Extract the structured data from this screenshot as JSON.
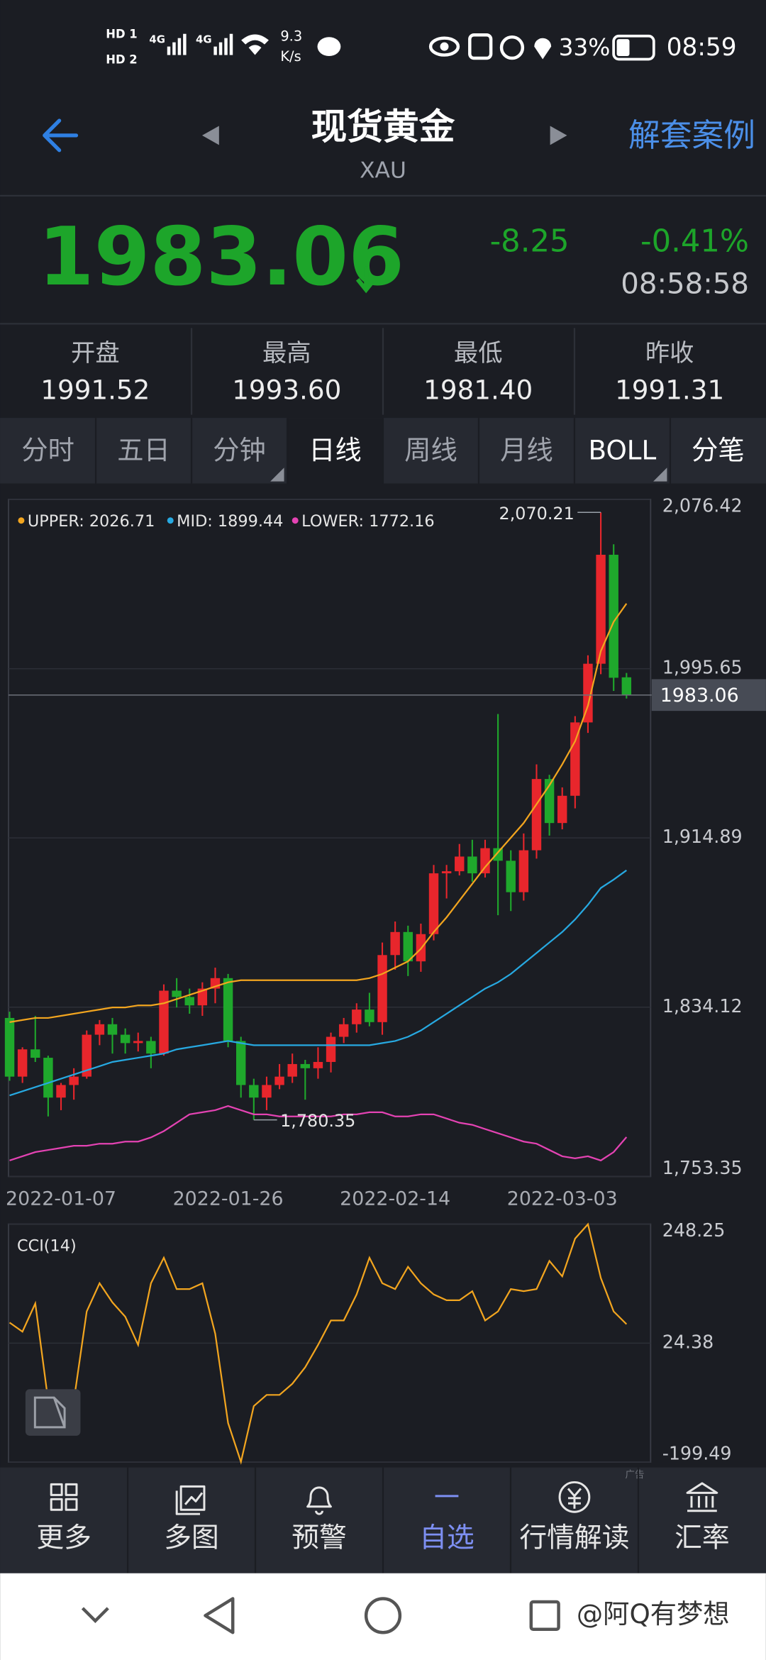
{
  "status_bar": {
    "sim": [
      "HD 1",
      "HD 2"
    ],
    "network": [
      "4G",
      "4G"
    ],
    "speed": "9.3",
    "speed_unit": "K/s",
    "battery": "33%",
    "time": "08:59"
  },
  "header": {
    "title": "现货黄金",
    "subtitle": "XAU",
    "action": "解套案例"
  },
  "quote": {
    "price": "1983.06",
    "change": "-8.25",
    "change_pct": "-0.41%",
    "time": "08:58:58"
  },
  "stats": [
    {
      "label": "开盘",
      "value": "1991.52"
    },
    {
      "label": "最高",
      "value": "1993.60"
    },
    {
      "label": "最低",
      "value": "1981.40"
    },
    {
      "label": "昨收",
      "value": "1991.31"
    }
  ],
  "tabs": [
    "分时",
    "五日",
    "分钟",
    "日线",
    "周线",
    "月线",
    "BOLL",
    "分笔"
  ],
  "chart_data": [
    {
      "type": "candlestick",
      "categories": [
        null,
        null,
        null,
        null,
        "2022-01-07",
        null,
        null,
        null,
        null,
        null,
        null,
        null,
        null,
        null,
        null,
        null,
        null,
        "2022-01-26",
        null,
        null,
        null,
        null,
        null,
        null,
        null,
        null,
        null,
        null,
        null,
        null,
        "2022-02-14",
        null,
        null,
        null,
        null,
        null,
        null,
        null,
        null,
        null,
        null,
        null,
        null,
        "2022-03-03",
        null,
        null,
        null,
        null,
        null
      ],
      "open": [
        1829,
        1801,
        1814,
        1810,
        1791,
        1797,
        1801,
        1821,
        1826,
        1821,
        1817,
        1818,
        1812,
        1842,
        1839,
        1835,
        1843,
        1848,
        1818,
        1797,
        1791,
        1797,
        1801,
        1807,
        1805,
        1808,
        1820,
        1826,
        1833,
        1827,
        1859,
        1870,
        1856,
        1869,
        1898,
        1899,
        1906,
        1898,
        1910,
        1904,
        1889,
        1909,
        1943,
        1922,
        1935,
        1970,
        1998,
        2050,
        1991.52
      ],
      "high": [
        1832,
        1815,
        1830,
        1811,
        1798,
        1805,
        1823,
        1828,
        1829,
        1824,
        1822,
        1820,
        1845,
        1848,
        1843,
        1846,
        1853,
        1850,
        1820,
        1800,
        1801,
        1807,
        1812,
        1809,
        1815,
        1822,
        1829,
        1836,
        1841,
        1865,
        1875,
        1873,
        1874,
        1902,
        1902,
        1912,
        1914,
        1914,
        1974,
        1909,
        1917,
        1950,
        1945,
        1939,
        1973,
        2002,
        2070.21,
        2055,
        1993.6
      ],
      "low": [
        1799,
        1798,
        1808,
        1782,
        1785,
        1790,
        1800,
        1816,
        1812,
        1812,
        1813,
        1805,
        1811,
        1834,
        1831,
        1830,
        1836,
        1815,
        1791,
        1780.35,
        1785,
        1795,
        1798,
        1790,
        1800,
        1803,
        1817,
        1822,
        1825,
        1821,
        1852,
        1849,
        1851,
        1866,
        1886,
        1897,
        1894,
        1896,
        1878,
        1880,
        1885,
        1905,
        1916,
        1919,
        1929,
        1965,
        1993,
        1985,
        1981.4
      ],
      "close": [
        1801,
        1814,
        1810,
        1791,
        1797,
        1801,
        1821,
        1826,
        1821,
        1817,
        1818,
        1812,
        1842,
        1839,
        1835,
        1843,
        1848,
        1818,
        1797,
        1791,
        1797,
        1801,
        1807,
        1805,
        1808,
        1820,
        1826,
        1833,
        1827,
        1859,
        1870,
        1856,
        1869,
        1898,
        1899,
        1906,
        1898,
        1910,
        1904,
        1889,
        1909,
        1943,
        1922,
        1935,
        1970,
        1998,
        2050,
        1991.31,
        1983.06
      ],
      "up_color": "#e8262c",
      "down_color": "#1fa82c",
      "series": [
        {
          "name": "UPPER: 2026.71",
          "color": "#f2a51f",
          "values": [
            1827,
            1828,
            1829,
            1829,
            1830,
            1831,
            1832,
            1833,
            1834,
            1834,
            1835,
            1835,
            1836,
            1838,
            1840,
            1842,
            1844,
            1846,
            1847,
            1847,
            1847,
            1847,
            1847,
            1847,
            1847,
            1847,
            1847,
            1847,
            1848,
            1850,
            1853,
            1856,
            1862,
            1870,
            1877,
            1885,
            1893,
            1901,
            1908,
            1915,
            1922,
            1931,
            1940,
            1950,
            1961,
            1978,
            2004,
            2018,
            2026.71
          ]
        },
        {
          "name": "MID: 1899.44",
          "color": "#27a9e1",
          "values": [
            1792,
            1794,
            1796,
            1798,
            1800,
            1802,
            1804,
            1806,
            1808,
            1809,
            1810,
            1811,
            1812,
            1814,
            1815,
            1816,
            1817,
            1818,
            1817,
            1816,
            1816,
            1816,
            1816,
            1816,
            1816,
            1816,
            1816,
            1816,
            1816,
            1817,
            1818,
            1820,
            1823,
            1827,
            1831,
            1835,
            1839,
            1843,
            1846,
            1850,
            1855,
            1860,
            1865,
            1870,
            1876,
            1883,
            1891,
            1895,
            1899.44
          ]
        },
        {
          "name": "LOWER: 1772.16",
          "color": "#e443b3",
          "values": [
            1761,
            1763,
            1765,
            1766,
            1767,
            1768,
            1768,
            1769,
            1769,
            1770,
            1770,
            1772,
            1775,
            1779,
            1783,
            1784,
            1785,
            1787,
            1785,
            1783,
            1783,
            1782,
            1782,
            1782,
            1782,
            1782,
            1783,
            1783,
            1784,
            1784,
            1782,
            1782,
            1783,
            1783,
            1781,
            1779,
            1778,
            1776,
            1774,
            1772,
            1770,
            1769,
            1766,
            1763,
            1762,
            1763,
            1761,
            1765,
            1772.16
          ]
        }
      ],
      "ylim": [
        1753.35,
        2076.42
      ],
      "yticks": [
        {
          "value": 2076.42,
          "label": "2,076.42"
        },
        {
          "value": 1995.65,
          "label": "1,995.65"
        },
        {
          "value": 1914.89,
          "label": "1,914.89"
        },
        {
          "value": 1834.12,
          "label": "1,834.12"
        },
        {
          "value": 1753.35,
          "label": "1,753.35"
        }
      ],
      "grid": true,
      "annotations": [
        {
          "label": "2,070.21",
          "value": 2070.21
        },
        {
          "label": "1,780.35",
          "value": 1780.35
        }
      ],
      "last_price": 1983.06
    },
    {
      "type": "line",
      "title": "CCI(14)",
      "color": "#f2a51f",
      "values": [
        63,
        46,
        99,
        -84,
        -126,
        -84,
        84,
        137,
        101,
        74,
        21,
        137,
        185,
        126,
        126,
        137,
        42,
        -126,
        -199,
        -94,
        -73,
        -73,
        -52,
        -21,
        21,
        67,
        67,
        116,
        185,
        137,
        126,
        168,
        137,
        116,
        105,
        105,
        122,
        67,
        84,
        126,
        122,
        126,
        179,
        150,
        221,
        248,
        147,
        84,
        60
      ],
      "ylim": [
        -199.49,
        248.25
      ],
      "yticks": [
        248.25,
        24.38,
        -199.49
      ],
      "grid": true
    }
  ],
  "nav": [
    "更多",
    "多图",
    "预警",
    "自选",
    "行情解读",
    "汇率"
  ],
  "ad_label": "广告",
  "watermark": "@阿Q有梦想"
}
